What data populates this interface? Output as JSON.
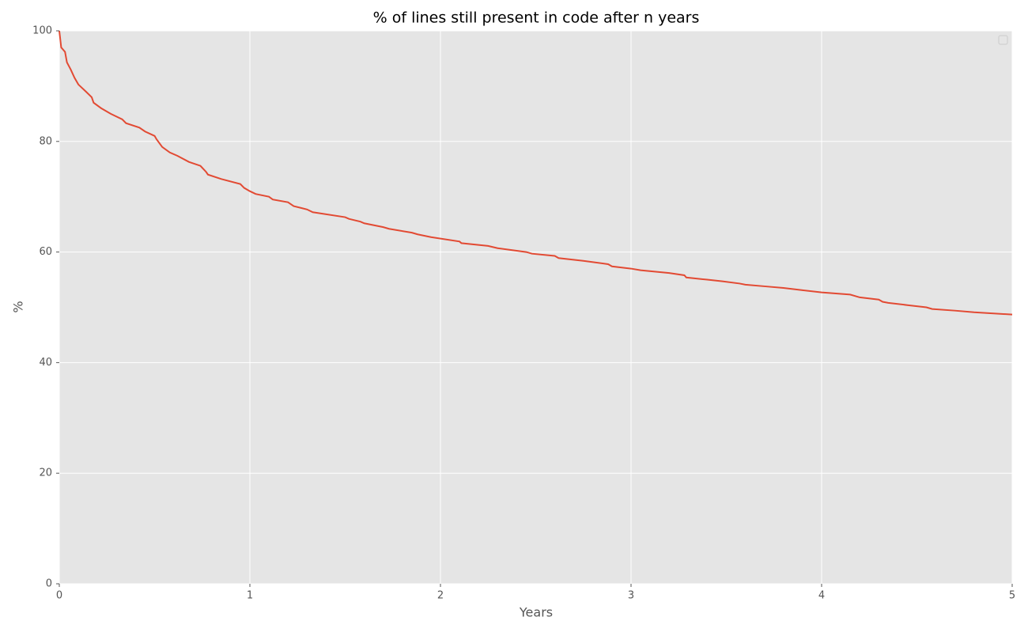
{
  "chart_data": {
    "type": "line",
    "title": "% of lines still present in code after n years",
    "x_label": "Years",
    "y_label": "%",
    "x": [
      0,
      0.01,
      0.03,
      0.04,
      0.06,
      0.08,
      0.1,
      0.14,
      0.17,
      0.18,
      0.22,
      0.27,
      0.33,
      0.35,
      0.42,
      0.45,
      0.5,
      0.51,
      0.54,
      0.58,
      0.62,
      0.68,
      0.74,
      0.77,
      0.78,
      0.85,
      0.95,
      0.97,
      1.0,
      1.03,
      1.1,
      1.12,
      1.2,
      1.23,
      1.3,
      1.33,
      1.5,
      1.52,
      1.58,
      1.6,
      1.7,
      1.73,
      1.85,
      1.88,
      1.95,
      2.1,
      2.11,
      2.25,
      2.3,
      2.45,
      2.48,
      2.6,
      2.62,
      2.75,
      2.88,
      2.9,
      3.0,
      3.05,
      3.2,
      3.28,
      3.29,
      3.4,
      3.48,
      3.57,
      3.6,
      3.7,
      3.8,
      3.9,
      4.0,
      4.15,
      4.2,
      4.3,
      4.32,
      4.35,
      4.45,
      4.55,
      4.58,
      4.7,
      4.8,
      5.0
    ],
    "values": [
      100,
      97,
      96.2,
      94.3,
      93,
      91.5,
      90.3,
      89,
      88,
      87,
      86,
      85,
      84,
      83.3,
      82.5,
      81.8,
      81,
      80.4,
      79,
      78,
      77.4,
      76.3,
      75.6,
      74.5,
      74,
      73.2,
      72.3,
      71.6,
      71,
      70.5,
      70,
      69.5,
      69,
      68.3,
      67.7,
      67.2,
      66.3,
      66,
      65.5,
      65.2,
      64.5,
      64.2,
      63.5,
      63.2,
      62.7,
      61.9,
      61.6,
      61.1,
      60.7,
      60,
      59.7,
      59.3,
      58.9,
      58.4,
      57.8,
      57.4,
      57,
      56.7,
      56.2,
      55.8,
      55.4,
      55,
      54.7,
      54.3,
      54.1,
      53.8,
      53.5,
      53.1,
      52.7,
      52.3,
      51.8,
      51.4,
      51,
      50.8,
      50.4,
      50,
      49.7,
      49.4,
      49.1,
      48.7
    ],
    "color": "#e24a33",
    "xlim": [
      0,
      5
    ],
    "xticks": [
      0,
      1,
      2,
      3,
      4,
      5
    ],
    "ylim": [
      0,
      100
    ],
    "yticks": [
      0,
      20,
      40,
      60,
      80,
      100
    ],
    "grid": true
  }
}
